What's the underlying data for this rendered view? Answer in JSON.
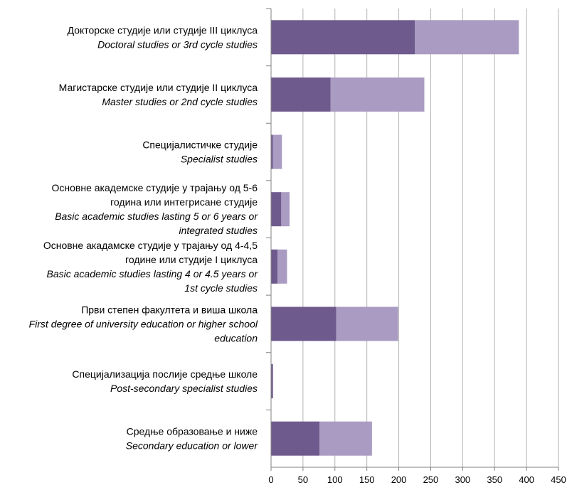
{
  "chart_data": {
    "type": "bar",
    "orientation": "horizontal",
    "stacked": true,
    "title": "",
    "xlabel": "",
    "ylabel": "",
    "xlim": [
      0,
      450
    ],
    "xticks": [
      0,
      50,
      100,
      150,
      200,
      250,
      300,
      350,
      400,
      450
    ],
    "grid": "vertical",
    "legend": "none",
    "colors": [
      "#6f5a8e",
      "#a99bc1"
    ],
    "categories": [
      {
        "label_lines": [
          {
            "text": "Докторске студије или студије III циклуса"
          },
          {
            "text": "Doctoral studies or 3rd cycle studies"
          }
        ]
      },
      {
        "label_lines": [
          {
            "text": "Магистарске студије или студије II циклуса"
          },
          {
            "text": "Master studies or 2nd cycle studies"
          }
        ]
      },
      {
        "label_lines": [
          {
            "text": "Специјалистичке студије"
          },
          {
            "text": "Specialist studies"
          }
        ]
      },
      {
        "label_lines": [
          {
            "text": "Основне академске студије у трајању од 5-6"
          },
          {
            "text": "година или интегрисане студије"
          },
          {
            "text": "Basic academic studies lasting 5 or 6  years or"
          },
          {
            "text": "integrated studies"
          }
        ]
      },
      {
        "label_lines": [
          {
            "text": "Основне акадамске студије у трајању од 4-4,5"
          },
          {
            "text": "године или студије I циклуса"
          },
          {
            "text": "Basic academic studies lasting 4 or 4.5 years or"
          },
          {
            "text": "1st cycle studies"
          }
        ]
      },
      {
        "label_lines": [
          {
            "text": "Први степен факултета и виша школа"
          },
          {
            "text": "First degree of university education or higher school"
          },
          {
            "text": "education"
          }
        ]
      },
      {
        "label_lines": [
          {
            "text": "Специјализација послије средње школе"
          },
          {
            "text": "Post-secondary specialist studies"
          }
        ]
      },
      {
        "label_lines": [
          {
            "text": "Средње образовање и ниже"
          },
          {
            "text": "Secondary education or lower"
          }
        ]
      }
    ],
    "series": [
      {
        "values": [
          225,
          93,
          3,
          16,
          10,
          102,
          3,
          76
        ]
      },
      {
        "values": [
          163,
          147,
          14,
          13,
          15,
          97,
          0,
          82
        ]
      }
    ]
  }
}
